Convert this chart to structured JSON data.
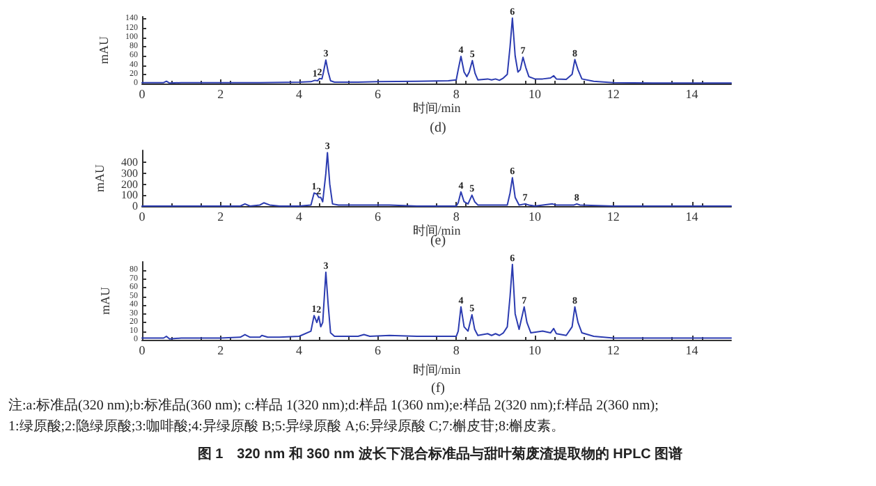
{
  "chart_data": [
    {
      "type": "line",
      "title": "(d)",
      "xlabel": "时间/min",
      "ylabel": "mAU",
      "xlim": [
        0,
        15
      ],
      "ylim": [
        0,
        145
      ],
      "xticks": [
        0,
        2,
        4,
        6,
        8,
        10,
        12,
        14
      ],
      "yticks": [
        0,
        20,
        40,
        60,
        80,
        100,
        120,
        140
      ],
      "grid": false,
      "marker": "none",
      "line_style": "solid",
      "series": [
        {
          "color": "#2b3bb0",
          "x": [
            0,
            0.55,
            0.62,
            0.7,
            1,
            2,
            3,
            4,
            4.3,
            4.4,
            4.47,
            4.52,
            4.58,
            4.62,
            4.68,
            4.74,
            4.8,
            4.9,
            5.5,
            6,
            7,
            7.8,
            8,
            8.05,
            8.12,
            8.2,
            8.27,
            8.33,
            8.41,
            8.48,
            8.55,
            8.8,
            8.9,
            9,
            9.1,
            9.2,
            9.3,
            9.37,
            9.43,
            9.5,
            9.57,
            9.63,
            9.7,
            9.77,
            9.85,
            10,
            10.2,
            10.4,
            10.48,
            10.55,
            10.8,
            10.95,
            11.02,
            11.1,
            11.2,
            11.5,
            12,
            13,
            14,
            15
          ],
          "values": [
            2,
            2,
            5,
            1,
            2,
            2,
            2,
            3,
            4,
            7,
            6,
            11,
            10,
            25,
            51,
            25,
            6,
            3,
            3,
            4,
            5,
            6,
            8,
            30,
            59,
            25,
            15,
            25,
            50,
            22,
            8,
            10,
            8,
            10,
            7,
            12,
            20,
            80,
            142,
            60,
            25,
            30,
            57,
            35,
            15,
            10,
            10,
            12,
            17,
            10,
            9,
            20,
            52,
            30,
            10,
            5,
            2,
            1,
            1,
            1
          ]
        }
      ],
      "annotations": [
        {
          "text": "1",
          "x": 4.4,
          "y": 7
        },
        {
          "text": "2",
          "x": 4.52,
          "y": 11
        },
        {
          "text": "3",
          "x": 4.68,
          "y": 51
        },
        {
          "text": "4",
          "x": 8.12,
          "y": 59
        },
        {
          "text": "5",
          "x": 8.41,
          "y": 50
        },
        {
          "text": "6",
          "x": 9.43,
          "y": 142
        },
        {
          "text": "7",
          "x": 9.7,
          "y": 57
        },
        {
          "text": "8",
          "x": 11.02,
          "y": 52
        }
      ]
    },
    {
      "type": "line",
      "title": "(e)",
      "xlabel": "时间/min",
      "ylabel": "mAU",
      "xlim": [
        0,
        15
      ],
      "ylim": [
        0,
        510
      ],
      "xticks": [
        0,
        2,
        4,
        6,
        8,
        10,
        12,
        14
      ],
      "yticks": [
        0,
        100,
        200,
        300,
        400
      ],
      "grid": false,
      "marker": "none",
      "line_style": "solid",
      "series": [
        {
          "color": "#2b3bb0",
          "x": [
            0,
            1,
            2,
            2.5,
            2.62,
            2.75,
            3,
            3.1,
            3.25,
            3.5,
            4,
            4.3,
            4.38,
            4.45,
            4.5,
            4.55,
            4.6,
            4.68,
            4.72,
            4.78,
            4.85,
            5,
            5.5,
            5.7,
            6,
            6.3,
            7,
            8,
            8.05,
            8.12,
            8.2,
            8.3,
            8.4,
            8.47,
            8.55,
            9,
            9.3,
            9.37,
            9.43,
            9.5,
            9.6,
            9.75,
            9.85,
            10,
            10.45,
            10.55,
            11,
            11.07,
            11.15,
            12,
            13,
            15
          ],
          "values": [
            0,
            0,
            0,
            0,
            20,
            0,
            10,
            30,
            10,
            0,
            0,
            10,
            120,
            110,
            80,
            80,
            40,
            300,
            490,
            200,
            20,
            10,
            10,
            10,
            10,
            10,
            0,
            0,
            30,
            130,
            40,
            20,
            100,
            40,
            10,
            10,
            10,
            120,
            260,
            80,
            10,
            20,
            10,
            0,
            20,
            10,
            10,
            20,
            10,
            0,
            0,
            0
          ]
        }
      ],
      "annotations": [
        {
          "text": "1",
          "x": 4.38,
          "y": 120
        },
        {
          "text": "2",
          "x": 4.5,
          "y": 75
        },
        {
          "text": "3",
          "x": 4.72,
          "y": 490
        },
        {
          "text": "4",
          "x": 8.12,
          "y": 130
        },
        {
          "text": "5",
          "x": 8.4,
          "y": 100
        },
        {
          "text": "6",
          "x": 9.43,
          "y": 260
        },
        {
          "text": "7",
          "x": 9.75,
          "y": 20
        },
        {
          "text": "8",
          "x": 11.07,
          "y": 20
        }
      ]
    },
    {
      "type": "line",
      "title": "(f)",
      "xlabel": "时间/min",
      "ylabel": "mAU",
      "xlim": [
        0,
        15
      ],
      "ylim": [
        0,
        90
      ],
      "xticks": [
        0,
        2,
        4,
        6,
        8,
        10,
        12,
        14
      ],
      "yticks": [
        0,
        10,
        20,
        30,
        40,
        50,
        60,
        70,
        80
      ],
      "grid": false,
      "marker": "none",
      "line_style": "solid",
      "series": [
        {
          "color": "#2b3bb0",
          "x": [
            0,
            0.55,
            0.62,
            0.7,
            1,
            2,
            2.5,
            2.62,
            2.75,
            3,
            3.05,
            3.2,
            3.5,
            4,
            4.3,
            4.38,
            4.45,
            4.5,
            4.55,
            4.6,
            4.68,
            4.74,
            4.8,
            4.9,
            5.5,
            5.65,
            5.8,
            6.3,
            7,
            8,
            8.05,
            8.12,
            8.2,
            8.3,
            8.4,
            8.47,
            8.55,
            8.8,
            8.9,
            9,
            9.1,
            9.2,
            9.3,
            9.37,
            9.43,
            9.5,
            9.6,
            9.73,
            9.8,
            9.9,
            10.2,
            10.4,
            10.48,
            10.55,
            10.8,
            10.95,
            11.02,
            11.1,
            11.2,
            11.5,
            12,
            13,
            15
          ],
          "values": [
            2,
            2,
            4,
            1,
            2,
            2,
            3,
            6,
            3,
            3,
            5,
            3,
            3,
            4,
            10,
            28,
            20,
            27,
            15,
            20,
            78,
            40,
            8,
            4,
            4,
            6,
            4,
            5,
            4,
            4,
            10,
            38,
            15,
            10,
            29,
            12,
            5,
            7,
            5,
            7,
            5,
            8,
            15,
            50,
            87,
            30,
            12,
            38,
            20,
            8,
            10,
            8,
            13,
            7,
            5,
            15,
            38,
            20,
            8,
            4,
            2,
            2,
            2
          ]
        }
      ],
      "annotations": [
        {
          "text": "1",
          "x": 4.38,
          "y": 28
        },
        {
          "text": "2",
          "x": 4.5,
          "y": 27
        },
        {
          "text": "3",
          "x": 4.68,
          "y": 78
        },
        {
          "text": "4",
          "x": 8.12,
          "y": 38
        },
        {
          "text": "5",
          "x": 8.4,
          "y": 29
        },
        {
          "text": "6",
          "x": 9.43,
          "y": 87
        },
        {
          "text": "7",
          "x": 9.73,
          "y": 38
        },
        {
          "text": "8",
          "x": 11.02,
          "y": 38
        },
        "注:a:标准品(320 nm);b:标准品(360 nm); c:样品 1(320 nm);d:样品 1(360 nm);e:样品 2(320 nm);f:样品 2(360 nm);",
        "1:绿原酸;2:隐绿原酸;3:咖啡酸;4:异绿原酸 B;5:异绿原酸 A;6:异绿原酸 C;7:槲皮苷;8:槲皮素。",
        "图 1　320 nm 和 360 nm 波长下混合标准品与甜叶菊废渣提取物的 HPLC 图谱"
      ]
    }
  ]
}
